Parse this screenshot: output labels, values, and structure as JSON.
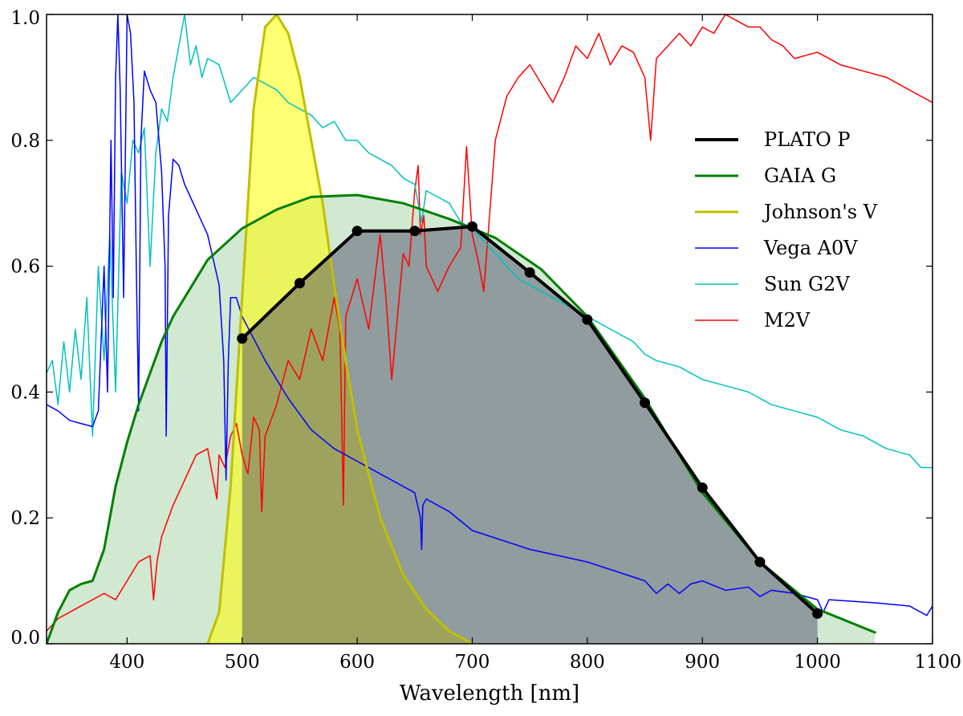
{
  "chart_data": {
    "type": "line",
    "xlabel": "Wavelength [nm]",
    "ylabel": "",
    "xlim": [
      330,
      1100
    ],
    "ylim": [
      0,
      1.0
    ],
    "xticks": [
      400,
      500,
      600,
      700,
      800,
      900,
      1000,
      1100
    ],
    "yticks": [
      0.0,
      0.2,
      0.4,
      0.6,
      0.8,
      1.0
    ],
    "xtick_labels": [
      "400",
      "500",
      "600",
      "700",
      "800",
      "900",
      "1000",
      "1100"
    ],
    "ytick_labels": [
      "0.0",
      "0.2",
      "0.4",
      "0.6",
      "0.8",
      "1.0"
    ],
    "grid": false,
    "legend_position": "right",
    "series": [
      {
        "name": "PLATO P",
        "color": "#000000",
        "style": "thick line with markers",
        "x": [
          500,
          550,
          600,
          650,
          700,
          750,
          800,
          850,
          900,
          950,
          1000
        ],
        "y": [
          0.485,
          0.573,
          0.656,
          0.656,
          0.663,
          0.59,
          0.515,
          0.383,
          0.248,
          0.13,
          0.048
        ]
      },
      {
        "name": "GAIA G",
        "color": "#008000",
        "style": "line with filled area",
        "x": [
          330,
          340,
          350,
          360,
          370,
          380,
          390,
          400,
          410,
          420,
          430,
          440,
          450,
          470,
          500,
          530,
          560,
          600,
          640,
          680,
          720,
          760,
          800,
          850,
          900,
          950,
          1000,
          1050
        ],
        "y": [
          0.0,
          0.05,
          0.085,
          0.095,
          0.1,
          0.15,
          0.25,
          0.32,
          0.38,
          0.43,
          0.48,
          0.52,
          0.55,
          0.61,
          0.66,
          0.69,
          0.71,
          0.713,
          0.7,
          0.675,
          0.645,
          0.595,
          0.52,
          0.39,
          0.24,
          0.13,
          0.055,
          0.018
        ]
      },
      {
        "name": "Johnson's V",
        "color": "#c0c000",
        "style": "line with filled area",
        "x": [
          470,
          480,
          490,
          500,
          510,
          520,
          530,
          540,
          550,
          560,
          570,
          580,
          590,
          600,
          620,
          640,
          660,
          680,
          700
        ],
        "y": [
          0.0,
          0.05,
          0.25,
          0.55,
          0.85,
          0.98,
          1.0,
          0.97,
          0.9,
          0.8,
          0.7,
          0.57,
          0.45,
          0.34,
          0.2,
          0.11,
          0.055,
          0.02,
          0.0
        ]
      },
      {
        "name": "Vega A0V",
        "color": "#0000ff",
        "style": "thin line",
        "x": [
          330,
          340,
          350,
          360,
          370,
          375,
          380,
          383,
          386,
          388,
          390,
          392,
          394,
          397,
          400,
          403,
          406,
          408,
          410,
          412,
          415,
          420,
          425,
          430,
          433,
          434,
          436,
          440,
          445,
          450,
          460,
          470,
          480,
          484,
          486,
          488,
          490,
          495,
          500,
          520,
          540,
          560,
          580,
          600,
          620,
          640,
          650,
          655,
          656,
          657,
          660,
          680,
          700,
          750,
          800,
          850,
          860,
          870,
          880,
          890,
          900,
          920,
          940,
          950,
          960,
          980,
          1000,
          1005,
          1010,
          1050,
          1080,
          1095,
          1100
        ],
        "y": [
          0.38,
          0.37,
          0.355,
          0.35,
          0.345,
          0.37,
          0.6,
          0.4,
          0.8,
          0.55,
          0.9,
          1.0,
          0.88,
          0.55,
          1.0,
          0.97,
          0.86,
          0.6,
          0.37,
          0.8,
          0.91,
          0.88,
          0.86,
          0.75,
          0.6,
          0.33,
          0.68,
          0.77,
          0.76,
          0.73,
          0.69,
          0.65,
          0.57,
          0.45,
          0.26,
          0.45,
          0.55,
          0.55,
          0.52,
          0.45,
          0.39,
          0.34,
          0.31,
          0.29,
          0.27,
          0.25,
          0.24,
          0.2,
          0.15,
          0.22,
          0.23,
          0.21,
          0.18,
          0.15,
          0.13,
          0.1,
          0.08,
          0.095,
          0.08,
          0.095,
          0.1,
          0.085,
          0.09,
          0.075,
          0.085,
          0.08,
          0.07,
          0.05,
          0.07,
          0.065,
          0.06,
          0.045,
          0.06
        ]
      },
      {
        "name": "Sun G2V",
        "color": "#00c0c0",
        "style": "thin line",
        "x": [
          330,
          335,
          340,
          345,
          350,
          355,
          360,
          365,
          370,
          375,
          380,
          385,
          390,
          395,
          400,
          405,
          410,
          415,
          420,
          425,
          430,
          435,
          440,
          445,
          450,
          455,
          460,
          465,
          470,
          480,
          490,
          500,
          510,
          520,
          530,
          540,
          550,
          560,
          570,
          580,
          590,
          600,
          610,
          620,
          630,
          640,
          650,
          656,
          660,
          670,
          680,
          690,
          700,
          720,
          740,
          760,
          780,
          800,
          820,
          840,
          850,
          860,
          880,
          900,
          920,
          940,
          960,
          980,
          1000,
          1020,
          1040,
          1060,
          1080,
          1090,
          1100
        ],
        "y": [
          0.43,
          0.45,
          0.38,
          0.48,
          0.4,
          0.5,
          0.42,
          0.55,
          0.33,
          0.6,
          0.45,
          0.65,
          0.4,
          0.75,
          0.7,
          0.8,
          0.78,
          0.82,
          0.6,
          0.78,
          0.85,
          0.83,
          0.9,
          0.95,
          1.0,
          0.92,
          0.95,
          0.9,
          0.93,
          0.92,
          0.86,
          0.88,
          0.9,
          0.89,
          0.88,
          0.86,
          0.85,
          0.84,
          0.82,
          0.83,
          0.8,
          0.8,
          0.78,
          0.77,
          0.76,
          0.74,
          0.73,
          0.67,
          0.72,
          0.71,
          0.7,
          0.67,
          0.66,
          0.62,
          0.58,
          0.56,
          0.54,
          0.52,
          0.5,
          0.48,
          0.46,
          0.45,
          0.44,
          0.42,
          0.41,
          0.4,
          0.38,
          0.37,
          0.36,
          0.34,
          0.33,
          0.31,
          0.3,
          0.28,
          0.28
        ]
      },
      {
        "name": "M2V",
        "color": "#ff0000",
        "style": "thin line",
        "x": [
          330,
          340,
          350,
          360,
          370,
          380,
          390,
          400,
          410,
          420,
          423,
          426,
          430,
          440,
          450,
          460,
          470,
          478,
          480,
          485,
          490,
          495,
          500,
          505,
          510,
          515,
          517,
          520,
          530,
          540,
          550,
          560,
          570,
          580,
          585,
          588,
          590,
          600,
          610,
          620,
          625,
          630,
          640,
          645,
          650,
          653,
          655,
          658,
          660,
          670,
          680,
          690,
          695,
          700,
          705,
          710,
          715,
          720,
          730,
          740,
          750,
          760,
          770,
          780,
          790,
          800,
          810,
          820,
          830,
          840,
          850,
          855,
          860,
          870,
          880,
          890,
          900,
          910,
          920,
          930,
          940,
          950,
          960,
          970,
          980,
          1000,
          1020,
          1040,
          1060,
          1080,
          1100
        ],
        "y": [
          0.02,
          0.04,
          0.05,
          0.06,
          0.07,
          0.08,
          0.07,
          0.1,
          0.13,
          0.14,
          0.07,
          0.13,
          0.17,
          0.22,
          0.26,
          0.3,
          0.31,
          0.23,
          0.3,
          0.28,
          0.33,
          0.35,
          0.3,
          0.27,
          0.36,
          0.34,
          0.21,
          0.33,
          0.38,
          0.45,
          0.42,
          0.5,
          0.45,
          0.55,
          0.5,
          0.22,
          0.52,
          0.58,
          0.5,
          0.65,
          0.55,
          0.42,
          0.62,
          0.6,
          0.72,
          0.76,
          0.65,
          0.68,
          0.6,
          0.56,
          0.6,
          0.63,
          0.79,
          0.65,
          0.61,
          0.56,
          0.68,
          0.8,
          0.87,
          0.9,
          0.92,
          0.89,
          0.86,
          0.9,
          0.95,
          0.93,
          0.97,
          0.92,
          0.95,
          0.94,
          0.9,
          0.8,
          0.93,
          0.95,
          0.97,
          0.95,
          0.98,
          0.97,
          1.0,
          0.99,
          0.98,
          0.98,
          0.96,
          0.95,
          0.93,
          0.94,
          0.92,
          0.91,
          0.9,
          0.88,
          0.86
        ]
      }
    ]
  }
}
